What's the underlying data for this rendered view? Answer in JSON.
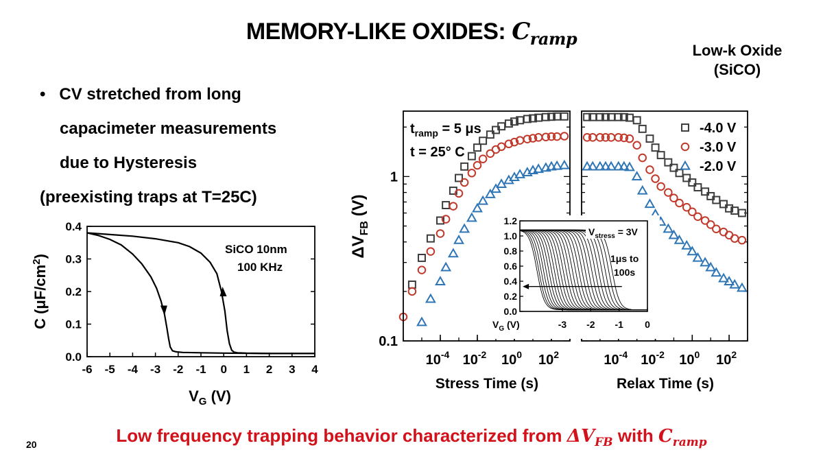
{
  "slide": {
    "title_text": "MEMORY-LIKE OXIDES: ",
    "title_math": "C",
    "title_math_sub": "ramp",
    "oxide_line1": "Low-k Oxide",
    "oxide_line2": "(SiCO)",
    "bullet_symbol": "•",
    "bullet_lines": [
      "CV stretched from long",
      "capacimeter measurements",
      "due to Hysteresis"
    ],
    "note": "(preexisting traps at T=25C)",
    "summary_prefix": "Low frequency trapping behavior characterized from ",
    "summary_math1": "ΔV",
    "summary_math1_sub": "FB",
    "summary_middle": " with ",
    "summary_math2": "C",
    "summary_math2_sub": "ramp",
    "page_number": "20"
  },
  "chart_data": [
    {
      "id": "cv",
      "type": "line",
      "ylabel": "C (μF/cm",
      "ylabel_sup": "2",
      "ylabel_end": ")",
      "xlabel": "V",
      "xlabel_sub": "G",
      "xlabel_end": " (V)",
      "xlim": [
        -6,
        4
      ],
      "ylim": [
        0,
        0.4
      ],
      "xticks": [
        "-6",
        "-5",
        "-4",
        "-3",
        "-2",
        "-1",
        "0",
        "1",
        "2",
        "3",
        "4"
      ],
      "yticks": [
        "0.0",
        "0.1",
        "0.2",
        "0.3",
        "0.4"
      ],
      "annotation_line1": "SiCO 10nm",
      "annotation_line2": "100 KHz",
      "color": "#000000",
      "series": [
        {
          "direction": "down",
          "x": [
            -6,
            -5.5,
            -5,
            -4.5,
            -4,
            -3.6,
            -3.2,
            -2.95,
            -2.75,
            -2.6,
            -2.5,
            -2.42,
            -2.35,
            -2.25,
            -2.1,
            -1.8,
            -1,
            0,
            2,
            4
          ],
          "y": [
            0.38,
            0.372,
            0.36,
            0.343,
            0.315,
            0.285,
            0.245,
            0.21,
            0.17,
            0.13,
            0.09,
            0.055,
            0.03,
            0.018,
            0.015,
            0.013,
            0.012,
            0.011,
            0.01,
            0.01
          ]
        },
        {
          "direction": "up",
          "x": [
            -6,
            -5,
            -4,
            -3,
            -2,
            -1.5,
            -1,
            -0.6,
            -0.3,
            -0.1,
            0.05,
            0.15,
            0.25,
            0.35,
            0.45,
            0.6,
            1,
            2,
            4
          ],
          "y": [
            0.38,
            0.375,
            0.37,
            0.362,
            0.35,
            0.338,
            0.318,
            0.29,
            0.255,
            0.2,
            0.14,
            0.08,
            0.04,
            0.02,
            0.014,
            0.012,
            0.011,
            0.01,
            0.01
          ]
        }
      ]
    },
    {
      "id": "dvfb",
      "type": "scatter",
      "ylabel": "ΔV",
      "ylabel_sub": "FB",
      "ylabel_end": " (V)",
      "yscale": "log",
      "ylim": [
        0.1,
        2.5
      ],
      "yticks": [
        "0.1",
        "1"
      ],
      "stress_panel": {
        "xlabel": "Stress Time (s)",
        "xscale": "log",
        "xlim": [
          1e-06,
          1000
        ],
        "xtick_exponents": [
          "-4",
          "-2",
          "0",
          "2"
        ],
        "xtick_base": "10",
        "annotation_t_prefix": "t",
        "annotation_t_sub": "ramp",
        "annotation_t_value": " = 5 μs",
        "annotation_temp": "t = 25° C"
      },
      "relax_panel": {
        "xlabel": "Relax Time (s)",
        "xscale": "log",
        "xlim": [
          1e-06,
          1000
        ],
        "xtick_exponents": [
          "-4",
          "-2",
          "0",
          "2"
        ],
        "xtick_base": "10"
      },
      "legend_position": "top-right",
      "series": [
        {
          "name": "-4.0 V",
          "marker": "square",
          "color": "#3c3c3c",
          "stress_x": [
            3e-06,
            1e-05,
            3e-05,
            0.0001,
            0.0002,
            0.0005,
            0.001,
            0.002,
            0.005,
            0.01,
            0.02,
            0.05,
            0.1,
            0.2,
            0.5,
            1,
            2,
            5,
            10,
            20,
            50,
            100,
            200,
            500
          ],
          "stress_y": [
            0.22,
            0.32,
            0.42,
            0.54,
            0.67,
            0.82,
            0.98,
            1.15,
            1.33,
            1.5,
            1.65,
            1.8,
            1.92,
            2.02,
            2.1,
            2.16,
            2.2,
            2.24,
            2.26,
            2.28,
            2.3,
            2.31,
            2.32,
            2.32
          ],
          "relax_x": [
            2e-06,
            4e-06,
            1e-05,
            2e-05,
            4e-05,
            0.0001,
            0.0002,
            0.0004,
            0.001,
            0.002,
            0.005,
            0.01,
            0.02,
            0.05,
            0.1,
            0.2,
            0.5,
            1,
            2,
            5,
            10,
            20,
            50,
            100,
            200,
            500
          ],
          "relax_y": [
            2.3,
            2.3,
            2.3,
            2.3,
            2.3,
            2.3,
            2.3,
            2.28,
            2.2,
            1.95,
            1.7,
            1.5,
            1.35,
            1.22,
            1.13,
            1.05,
            0.98,
            0.92,
            0.86,
            0.81,
            0.76,
            0.72,
            0.68,
            0.64,
            0.62,
            0.6
          ]
        },
        {
          "name": "-3.0 V",
          "marker": "circle",
          "color": "#c0392b",
          "stress_x": [
            1e-06,
            3e-06,
            1e-05,
            3e-05,
            0.0001,
            0.0002,
            0.0005,
            0.001,
            0.002,
            0.005,
            0.01,
            0.02,
            0.05,
            0.1,
            0.2,
            0.5,
            1,
            2,
            5,
            10,
            20,
            50,
            100,
            200,
            500
          ],
          "stress_y": [
            0.14,
            0.2,
            0.27,
            0.35,
            0.45,
            0.55,
            0.66,
            0.79,
            0.92,
            1.05,
            1.17,
            1.28,
            1.38,
            1.46,
            1.52,
            1.58,
            1.62,
            1.66,
            1.69,
            1.71,
            1.73,
            1.74,
            1.75,
            1.75,
            1.76
          ],
          "relax_x": [
            2e-06,
            4e-06,
            1e-05,
            2e-05,
            4e-05,
            0.0001,
            0.0002,
            0.0004,
            0.001,
            0.002,
            0.005,
            0.01,
            0.02,
            0.05,
            0.1,
            0.2,
            0.5,
            1,
            2,
            5,
            10,
            20,
            50,
            100,
            200,
            500
          ],
          "relax_y": [
            1.73,
            1.73,
            1.73,
            1.73,
            1.73,
            1.73,
            1.72,
            1.7,
            1.55,
            1.3,
            1.1,
            0.97,
            0.87,
            0.8,
            0.74,
            0.69,
            0.65,
            0.61,
            0.57,
            0.54,
            0.51,
            0.48,
            0.46,
            0.44,
            0.42,
            0.41
          ]
        },
        {
          "name": "-2.0 V",
          "marker": "triangle",
          "color": "#2e75b6",
          "stress_x": [
            1e-05,
            3e-05,
            0.0001,
            0.0002,
            0.0005,
            0.001,
            0.002,
            0.005,
            0.01,
            0.02,
            0.05,
            0.1,
            0.2,
            0.5,
            1,
            2,
            5,
            10,
            20,
            50,
            100,
            200,
            500
          ],
          "stress_y": [
            0.13,
            0.18,
            0.23,
            0.28,
            0.34,
            0.41,
            0.48,
            0.56,
            0.64,
            0.71,
            0.78,
            0.84,
            0.9,
            0.95,
            0.99,
            1.03,
            1.06,
            1.09,
            1.11,
            1.13,
            1.15,
            1.16,
            1.17
          ],
          "relax_x": [
            2e-06,
            4e-06,
            1e-05,
            2e-05,
            4e-05,
            0.0001,
            0.0002,
            0.0004,
            0.001,
            0.002,
            0.005,
            0.01,
            0.02,
            0.05,
            0.1,
            0.2,
            0.5,
            1,
            2,
            5,
            10,
            20,
            50,
            100,
            200,
            500
          ],
          "relax_y": [
            1.15,
            1.15,
            1.15,
            1.15,
            1.15,
            1.15,
            1.15,
            1.14,
            1.0,
            0.82,
            0.68,
            0.59,
            0.53,
            0.48,
            0.44,
            0.41,
            0.38,
            0.35,
            0.32,
            0.3,
            0.28,
            0.26,
            0.24,
            0.23,
            0.22,
            0.21
          ]
        }
      ]
    },
    {
      "id": "inset",
      "type": "line",
      "xlabel": "V",
      "xlabel_sub": "G",
      "xlabel_end": " (V)",
      "xlim": [
        -4.5,
        0
      ],
      "ylim": [
        0,
        1.2
      ],
      "xticks": [
        "-3",
        "-2",
        "-1",
        "0"
      ],
      "yticks": [
        "0.0",
        "0.2",
        "0.4",
        "0.6",
        "0.8",
        "1.0",
        "1.2"
      ],
      "annotation_vstress_prefix": "V",
      "annotation_vstress_sub": "stress",
      "annotation_vstress_value": " = 3V",
      "annotation_range_line1": "1μs to",
      "annotation_range_line2": "100s",
      "arrow_y": 0.33,
      "curve_count": 26,
      "v_transition_min": -3.9,
      "v_transition_max": -1.25,
      "c_high": 1.08,
      "c_low": 0.02,
      "color": "#000000"
    }
  ]
}
